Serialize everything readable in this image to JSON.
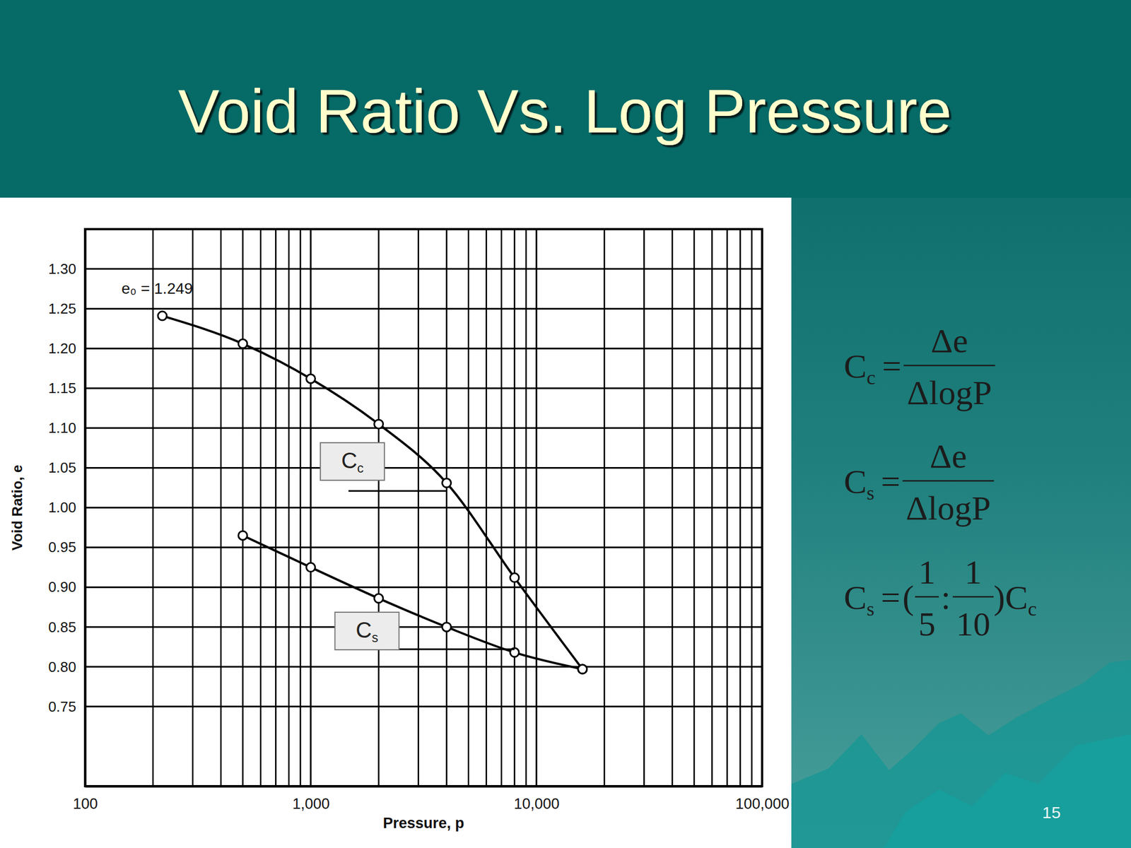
{
  "chart_data": {
    "type": "line",
    "title": "Void Ratio Vs. Log Pressure",
    "x_label": "Pressure, p",
    "y_label": "Void Ratio, e",
    "log": "x",
    "grid": true,
    "xlim": [
      100,
      100000
    ],
    "ylim": [
      0.65,
      1.35
    ],
    "xticks": [
      100,
      {
        "value": 1000,
        "label": "1,000"
      },
      {
        "value": 10000,
        "label": "10,000"
      },
      {
        "value": 100000,
        "label": "100,000"
      }
    ],
    "yticks": [
      0.75,
      {
        "value": 0.8,
        "label": "0.80"
      },
      0.85,
      {
        "value": 0.9,
        "label": "0.90"
      },
      0.95,
      {
        "value": 1.0,
        "label": "1.00"
      },
      1.05,
      {
        "value": 1.1,
        "label": "1.10"
      },
      1.15,
      {
        "value": 1.2,
        "label": "1.20"
      },
      1.25,
      {
        "value": 1.3,
        "label": "1.30"
      }
    ],
    "series": [
      {
        "color": "#000000",
        "marker": "circle",
        "line_style": "solid",
        "x": [
          220,
          500,
          1000,
          2000,
          4000,
          8000,
          16000
        ],
        "values": [
          1.241,
          1.206,
          1.162,
          1.105,
          1.031,
          0.912,
          0.797
        ]
      },
      {
        "color": "#000000",
        "marker": "circle",
        "line_style": "solid",
        "x": [
          500,
          1000,
          2000,
          4000,
          8000,
          16000
        ],
        "values": [
          0.965,
          0.925,
          0.886,
          0.85,
          0.818,
          0.797
        ]
      }
    ],
    "annotations": [
      {
        "text": "e₀ = 1.249",
        "x": 145,
        "y": 1.275
      },
      {
        "text": "Cc",
        "x": 1530,
        "y": 1.058,
        "boxed": true,
        "line": [
          [
            1470,
            1.021
          ],
          [
            4000,
            1.021
          ]
        ]
      },
      {
        "text": "Cs",
        "x": 1775,
        "y": 0.845,
        "boxed": true,
        "line": [
          [
            2450,
            0.822
          ],
          [
            8000,
            0.822
          ]
        ]
      }
    ]
  },
  "formulas": [
    {
      "lhs": "Cc",
      "operator": "=",
      "numerator": "Δe",
      "denominator": "ΔlogP"
    },
    {
      "lhs": "Cs",
      "operator": "=",
      "numerator": "Δe",
      "denominator": "ΔlogP"
    },
    {
      "lhs": "Cs",
      "operator": "=",
      "open": "(",
      "ratio": [
        {
          "numerator": "1",
          "denominator": "5"
        },
        {
          "numerator": "1",
          "denominator": "10"
        }
      ],
      "separator": ":",
      "close": ")",
      "rhs": "Cc"
    }
  ],
  "page_number": "15"
}
